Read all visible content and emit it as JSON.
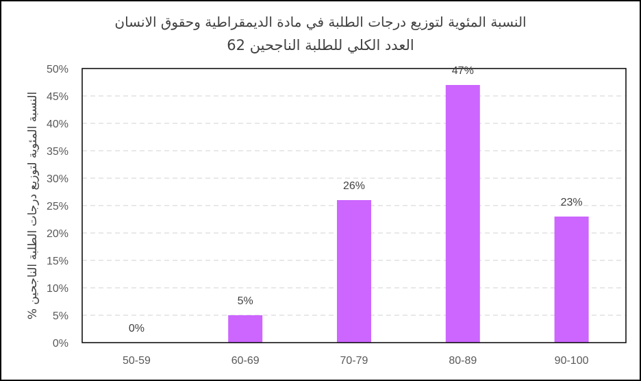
{
  "chart_data": {
    "type": "bar",
    "title": "النسبة المئوية لتوزيع درجات الطلبة في مادة الديمقراطية وحقوق الانسان",
    "subtitle": "العدد الكلي للطلبة الناجحين 62",
    "xlabel": "",
    "ylabel": "% النسبة المئوية لتوزيع درجات الطلبة الناجحين",
    "categories": [
      "50-59",
      "60-69",
      "70-79",
      "80-89",
      "90-100"
    ],
    "values": [
      0,
      5,
      26,
      47,
      23
    ],
    "data_labels": [
      "0%",
      "5%",
      "26%",
      "47%",
      "23%"
    ],
    "ylim": [
      0,
      50
    ],
    "yticks": [
      0,
      5,
      10,
      15,
      20,
      25,
      30,
      35,
      40,
      45,
      50
    ],
    "ytick_labels": [
      "0%",
      "5%",
      "10%",
      "15%",
      "20%",
      "25%",
      "30%",
      "35%",
      "40%",
      "45%",
      "50%"
    ],
    "grid": true,
    "legend": "none",
    "colors": {
      "bar": "#CC66FF",
      "grid": "#D9D9D9",
      "text": "#595959",
      "axis": "#000000"
    }
  }
}
